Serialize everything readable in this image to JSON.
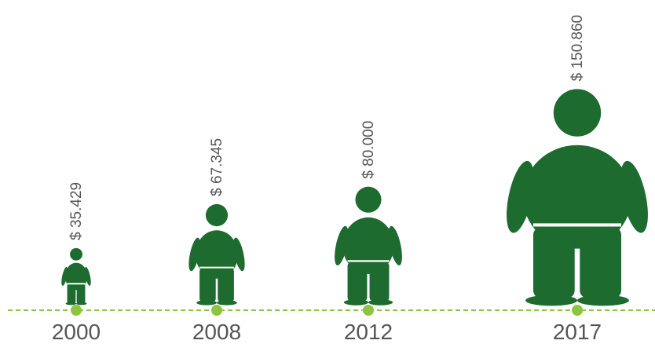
{
  "chart_data": {
    "type": "bar",
    "categories": [
      "2000",
      "2008",
      "2012",
      "2017"
    ],
    "values": [
      35429,
      67345,
      80000,
      150860
    ],
    "value_labels": [
      "$ 35.429",
      "$ 67.345",
      "$ 80.000",
      "$ 150.860"
    ],
    "title": "",
    "xlabel": "",
    "ylabel": "",
    "ylim": [
      0,
      160000
    ],
    "mark": "human-figure-icon",
    "grid": false,
    "legend": "none"
  },
  "colors": {
    "figure": "#1e6b2f",
    "baseline": "#8cc63f",
    "marker": "#8cc63f",
    "waistband": "#ffffff",
    "text": "#555555"
  }
}
